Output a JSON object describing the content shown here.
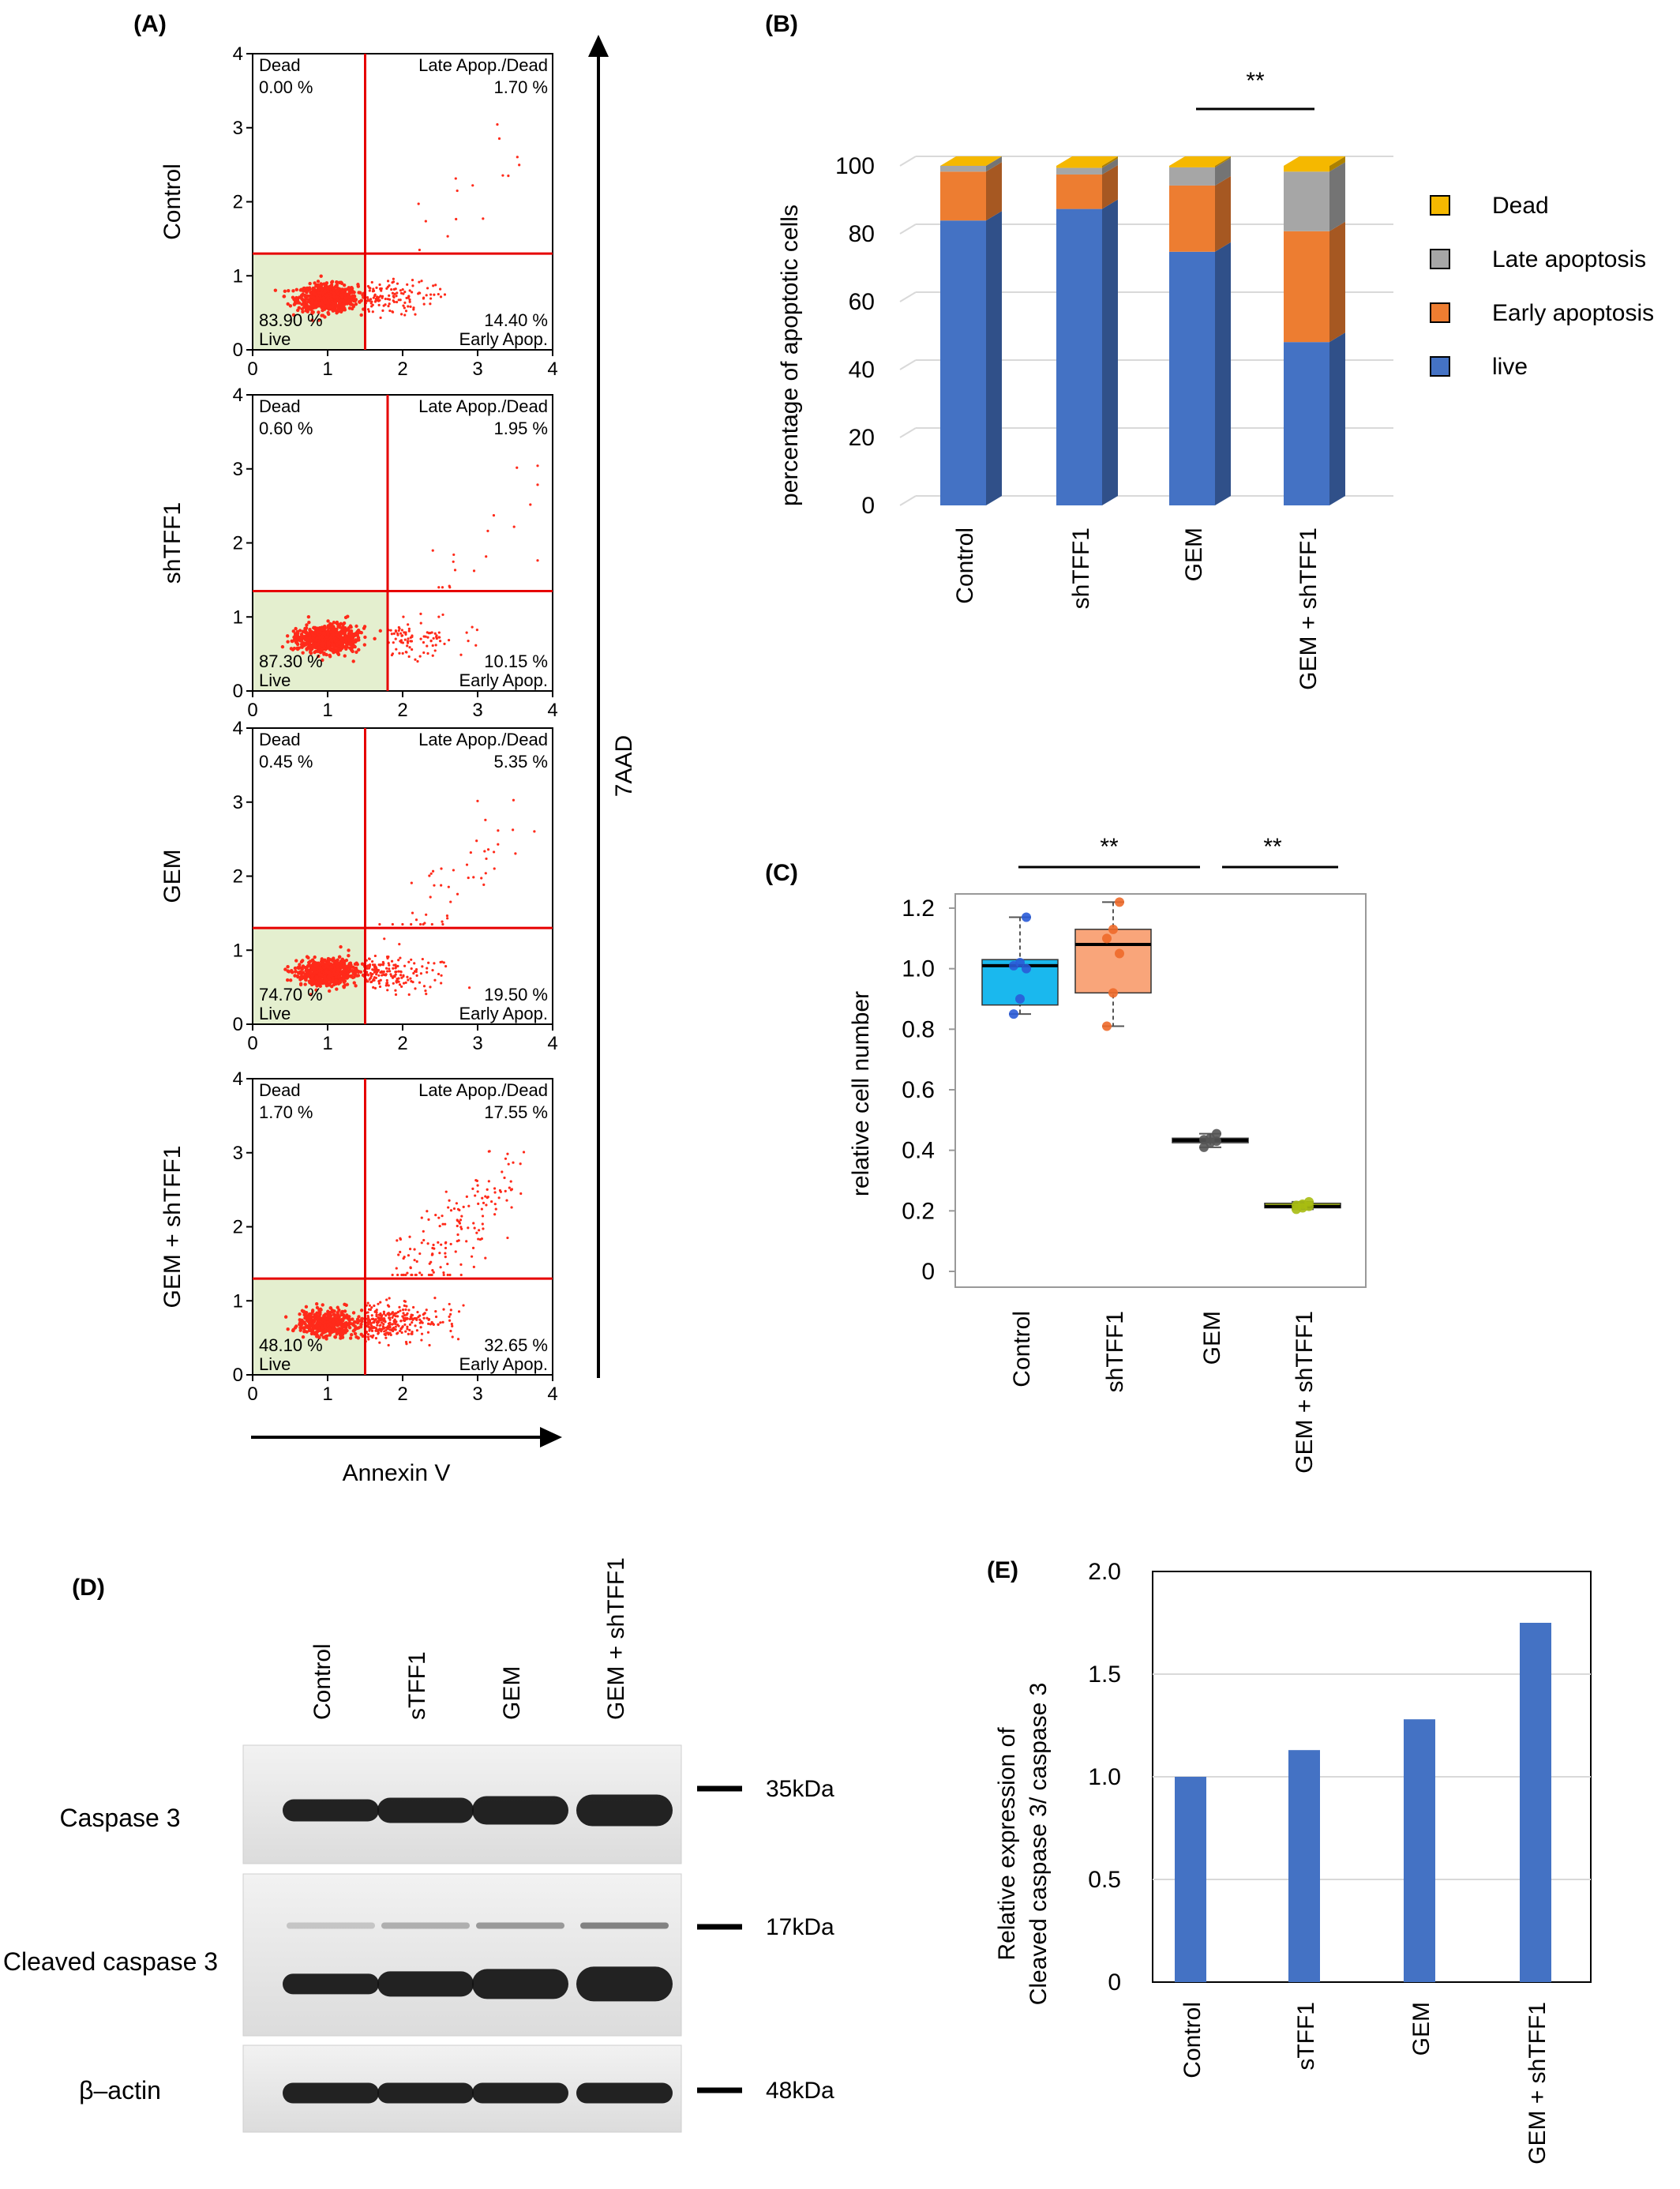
{
  "panel_labels": {
    "A": "(A)",
    "B": "(B)",
    "C": "(C)",
    "D": "(D)",
    "E": "(E)"
  },
  "colors": {
    "gate": "#e60000",
    "dots": "#ff2a1a",
    "live_fill": "#e4efcf",
    "dead": "#f5b800",
    "late": "#a6a6a6",
    "early": "#ed7d31",
    "live": "#4472c4",
    "control_box": "#1ab8ee",
    "shtff1_box": "#f9a57a",
    "gem_box": "#808080",
    "combo_box": "#d4e81a",
    "bar_e": "#4472c4"
  },
  "panel_a": {
    "y_axis_label": "7AAD",
    "x_axis_label": "Annexin V",
    "quadrant_names": {
      "ul": "Dead",
      "ur": "Late Apop./Dead",
      "ll": "Live",
      "lr": "Early Apop."
    },
    "ticks": [
      "0",
      "1",
      "2",
      "3",
      "4"
    ],
    "plots": [
      {
        "name": "Control",
        "dead": "0.00 %",
        "late": "1.70 %",
        "live": "83.90 %",
        "early": "14.40 %",
        "gate_x": 1.5,
        "gate_y": 1.3
      },
      {
        "name": "shTFF1",
        "dead": "0.60 %",
        "late": "1.95 %",
        "live": "87.30 %",
        "early": "10.15 %",
        "gate_x": 1.8,
        "gate_y": 1.35
      },
      {
        "name": "GEM",
        "dead": "0.45 %",
        "late": "5.35 %",
        "live": "74.70 %",
        "early": "19.50 %",
        "gate_x": 1.5,
        "gate_y": 1.3
      },
      {
        "name": "GEM + shTFF1",
        "dead": "1.70 %",
        "late": "17.55 %",
        "live": "48.10 %",
        "early": "32.65 %",
        "gate_x": 1.5,
        "gate_y": 1.3
      }
    ]
  },
  "chart_data": [
    {
      "type": "bar",
      "stacked": true,
      "ylabel": "percentage of apoptotic cells",
      "ylim": [
        0,
        100
      ],
      "yticks": [
        "0",
        "20",
        "40",
        "60",
        "80",
        "100"
      ],
      "categories": [
        "Control",
        "shTFF1",
        "GEM",
        "GEM + shTFF1"
      ],
      "series": [
        {
          "name": "live",
          "values": [
            83.9,
            87.3,
            74.7,
            48.1
          ]
        },
        {
          "name": "Early apoptosis",
          "values": [
            14.4,
            10.15,
            19.5,
            32.65
          ]
        },
        {
          "name": "Late apoptosis",
          "values": [
            1.7,
            1.95,
            5.35,
            17.55
          ]
        },
        {
          "name": "Dead",
          "values": [
            0.0,
            0.6,
            0.45,
            1.7
          ]
        }
      ],
      "legend": [
        "Dead",
        "Late apoptosis",
        "Early apoptosis",
        "live"
      ],
      "legend_position": "right",
      "significance": "**"
    },
    {
      "type": "box",
      "ylabel": "relative cell number",
      "ylim": [
        0,
        1.2
      ],
      "yticks": [
        "0",
        "0.2",
        "0.4",
        "0.6",
        "0.8",
        "1.0",
        "1.2"
      ],
      "categories": [
        "Control",
        "shTFF1",
        "GEM",
        "GEM + shTFF1"
      ],
      "boxes": [
        {
          "min": 0.85,
          "q1": 0.88,
          "median": 1.01,
          "q3": 1.03,
          "max": 1.17,
          "points": [
            0.85,
            0.9,
            1.0,
            1.01,
            1.02,
            1.17
          ]
        },
        {
          "min": 0.81,
          "q1": 0.92,
          "median": 1.08,
          "q3": 1.13,
          "max": 1.22,
          "points": [
            0.81,
            0.92,
            1.05,
            1.1,
            1.13,
            1.22
          ]
        },
        {
          "min": 0.41,
          "q1": 0.425,
          "median": 0.433,
          "q3": 0.44,
          "max": 0.455,
          "points": [
            0.41,
            0.425,
            0.43,
            0.435,
            0.44,
            0.455
          ]
        },
        {
          "min": 0.205,
          "q1": 0.21,
          "median": 0.215,
          "q3": 0.225,
          "max": 0.23,
          "points": [
            0.205,
            0.21,
            0.215,
            0.218,
            0.222,
            0.23
          ]
        }
      ],
      "significance": [
        "**",
        "**"
      ]
    },
    {
      "type": "bar",
      "ylabel": "Relative expression of Cleaved caspase 3/ caspase 3",
      "ylabel_lines": [
        "Relative expression of",
        "Cleaved caspase 3/ caspase 3"
      ],
      "ylim": [
        0,
        2.0
      ],
      "yticks": [
        "0",
        "0.5",
        "1.0",
        "1.5",
        "2.0"
      ],
      "categories": [
        "Control",
        "sTFF1",
        "GEM",
        "GEM + shTFF1"
      ],
      "values": [
        1.0,
        1.13,
        1.28,
        1.75
      ]
    }
  ],
  "panel_d": {
    "lanes": [
      "Control",
      "sTFF1",
      "GEM",
      "GEM + shTFF1"
    ],
    "blots": [
      {
        "name": "Caspase 3",
        "size": "35kDa"
      },
      {
        "name": "Cleaved caspase 3",
        "size": "17kDa"
      },
      {
        "name": "β–actin",
        "size": "48kDa"
      }
    ]
  }
}
